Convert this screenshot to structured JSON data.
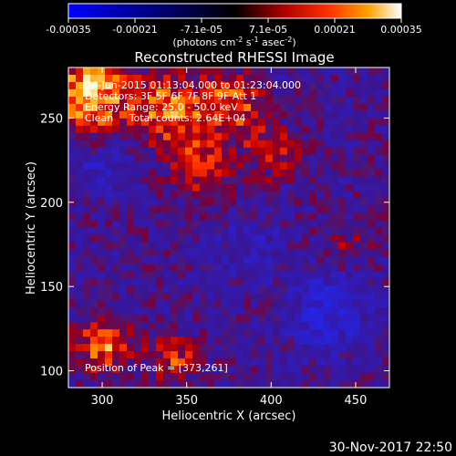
{
  "chart_data": {
    "type": "heatmap",
    "title": "Reconstructed RHESSI Image",
    "xlabel": "Heliocentric X (arcsec)",
    "ylabel": "Heliocentric Y (arcsec)",
    "xlim": [
      280,
      470
    ],
    "ylim": [
      90,
      280
    ],
    "x_ticks": [
      300,
      350,
      400,
      450
    ],
    "y_ticks": [
      100,
      150,
      200,
      250
    ],
    "colorbar": {
      "range": [
        -0.00035,
        0.00035
      ],
      "ticks": [
        "-0.00035",
        "-0.00021",
        "-7.1e-05",
        "7.1e-05",
        "0.00021",
        "0.00035"
      ],
      "unit_main": "(photons cm",
      "unit_sup1": "-2",
      "unit_mid": " s",
      "unit_sup2": "-1",
      "unit_mid2": " asec",
      "unit_sup3": "-2",
      "unit_end": ")"
    },
    "annotations": {
      "line1": "24-Jun-2015 01:13:04.000 to 01:23:04.000",
      "line2": "Detectors: 3F 5F 6F 7F 8F 9F  Att 1",
      "line3": "Energy Range: 25.0 - 50.0 keV",
      "line4": "Clean     Total counts: 2.64E+04",
      "peak": "Position of Peak = [373,261]"
    },
    "peak_position": [
      373,
      261
    ],
    "grid": false,
    "timestamp": "30-Nov-2017 22:50"
  }
}
